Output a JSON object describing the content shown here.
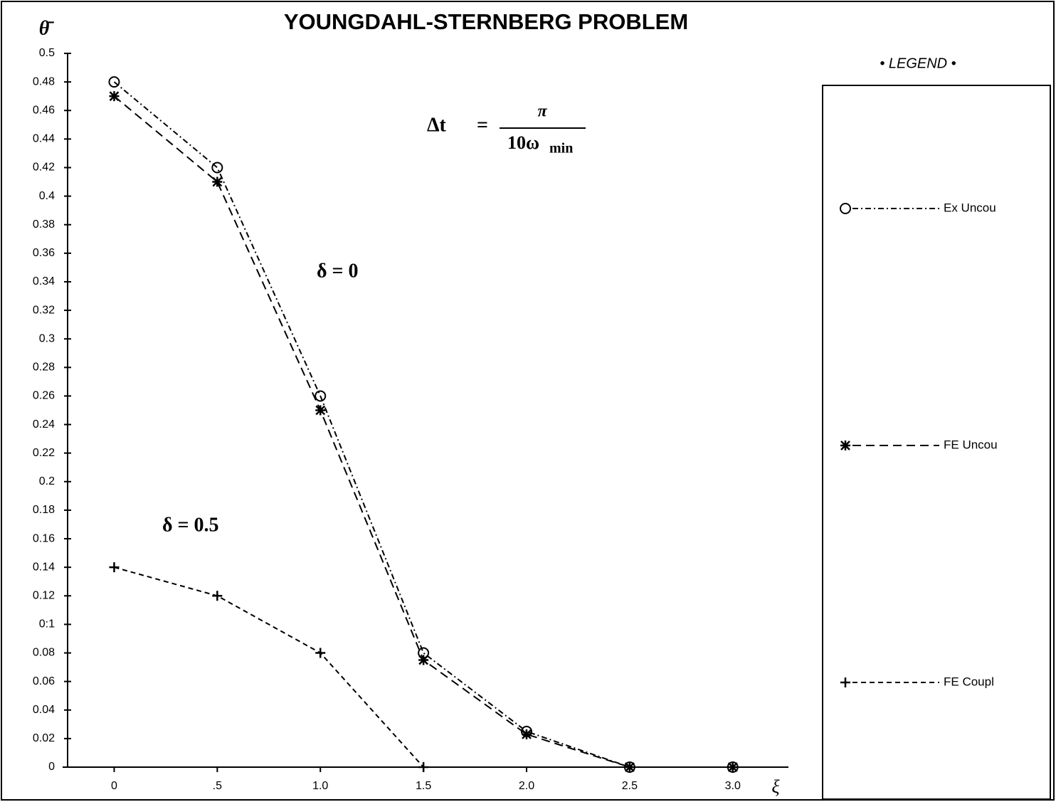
{
  "chart_data": {
    "type": "line",
    "title": "YOUNGDAHL-STERNBERG PROBLEM",
    "ylabel": "θ̄",
    "xlabel": "ξ",
    "legend_title": "• LEGEND •",
    "legend": "right",
    "annotations": {
      "dt": {
        "lhs": "Δt",
        "eq": "=",
        "numerator": "π",
        "denominator": "10ω",
        "subscript": "min"
      },
      "delta0": "δ = 0",
      "delta05": "δ = 0.5"
    },
    "xlim": [
      -0.25,
      3.27
    ],
    "ylim": [
      0,
      0.5
    ],
    "xticks": [
      0,
      {
        "value": 0.5,
        "label": ".5"
      },
      {
        "value": 1,
        "label": "1.0"
      },
      {
        "value": 1.5,
        "label": "1.5"
      },
      {
        "value": 2,
        "label": "2.0"
      },
      {
        "value": 2.5,
        "label": "2.5"
      },
      {
        "value": 3,
        "label": "3.0"
      }
    ],
    "yticks": [
      0,
      0.02,
      0.04,
      0.06,
      0.08,
      {
        "value": 0.1,
        "label": "0:1"
      },
      0.12,
      0.14,
      0.16,
      0.18,
      0.2,
      0.22,
      0.24,
      0.26,
      0.28,
      0.3,
      0.32,
      0.34,
      0.36,
      0.38,
      0.4,
      0.42,
      0.44,
      0.46,
      0.48,
      0.5
    ],
    "series": [
      {
        "name": "Ex Uncou",
        "color": "#000000",
        "marker": "circle",
        "dash": "dashdot",
        "x": [
          0,
          0.5,
          1,
          1.5,
          2,
          2.5,
          3
        ],
        "values": [
          0.48,
          0.42,
          0.26,
          0.08,
          0.025,
          0,
          0
        ]
      },
      {
        "name": "FE Uncou",
        "color": "#000000",
        "marker": "asterisk",
        "dash": "dashed",
        "x": [
          0,
          0.5,
          1,
          1.5,
          2,
          2.5,
          3
        ],
        "values": [
          0.47,
          0.41,
          0.25,
          0.075,
          0.023,
          0,
          0
        ]
      },
      {
        "name": "FE Coupl",
        "color": "#000000",
        "marker": "plus",
        "dash": "short",
        "x": [
          0,
          0.5,
          1,
          1.5
        ],
        "values": [
          0.14,
          0.12,
          0.08,
          0
        ]
      }
    ]
  }
}
